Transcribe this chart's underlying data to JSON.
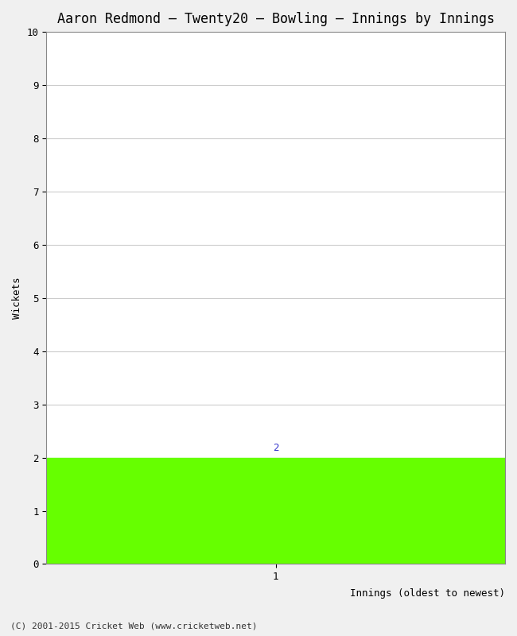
{
  "title": "Aaron Redmond – Twenty20 – Bowling – Innings by Innings",
  "xlabel": "Innings (oldest to newest)",
  "ylabel": "Wickets",
  "footer": "(C) 2001-2015 Cricket Web (www.cricketweb.net)",
  "bar_positions": [
    1
  ],
  "bar_heights": [
    2
  ],
  "bar_color": "#66ff00",
  "bar_label_value": "2",
  "bar_label_color": "#3333cc",
  "xlim": [
    0,
    2
  ],
  "ylim": [
    0,
    10
  ],
  "yticks": [
    0,
    1,
    2,
    3,
    4,
    5,
    6,
    7,
    8,
    9,
    10
  ],
  "xticks": [
    1
  ],
  "background_color": "#f0f0f0",
  "plot_bg_color": "#ffffff",
  "grid_color": "#cccccc",
  "title_fontsize": 12,
  "label_fontsize": 9,
  "tick_fontsize": 9,
  "footer_fontsize": 8,
  "bar_label_fontsize": 9
}
